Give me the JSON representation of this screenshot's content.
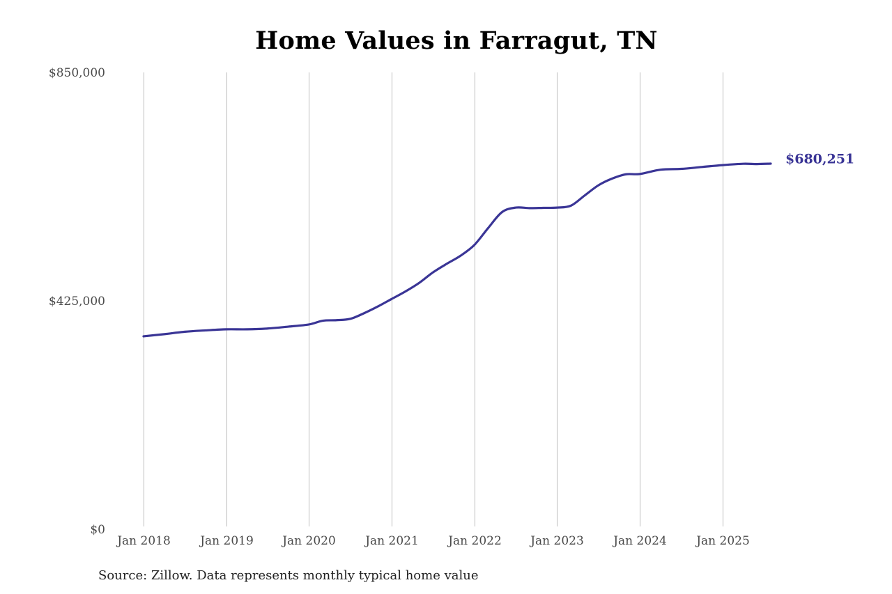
{
  "chart_data": {
    "type": "line",
    "title": "Home Values in Farragut, TN",
    "source": "Source: Zillow. Data represents monthly typical home value",
    "xlabel": "",
    "ylabel": "",
    "ylim": [
      0,
      850000
    ],
    "yticks": [
      {
        "value": 0,
        "label": "$0"
      },
      {
        "value": 425000,
        "label": "$425,000"
      },
      {
        "value": 850000,
        "label": "$850,000"
      }
    ],
    "xticks": [
      {
        "date": "2018-01",
        "label": "Jan 2018"
      },
      {
        "date": "2019-01",
        "label": "Jan 2019"
      },
      {
        "date": "2020-01",
        "label": "Jan 2020"
      },
      {
        "date": "2021-01",
        "label": "Jan 2021"
      },
      {
        "date": "2022-01",
        "label": "Jan 2022"
      },
      {
        "date": "2023-01",
        "label": "Jan 2023"
      },
      {
        "date": "2024-01",
        "label": "Jan 2024"
      },
      {
        "date": "2025-01",
        "label": "Jan 2025"
      }
    ],
    "grid": {
      "vertical": true,
      "horizontal": false
    },
    "line_color": "#3a3596",
    "end_label": "$680,251",
    "series": [
      {
        "points": [
          {
            "x": "2018-01",
            "y": 359000
          },
          {
            "x": "2018-04",
            "y": 363000
          },
          {
            "x": "2018-07",
            "y": 367500
          },
          {
            "x": "2018-10",
            "y": 370000
          },
          {
            "x": "2019-01",
            "y": 372000
          },
          {
            "x": "2019-04",
            "y": 372000
          },
          {
            "x": "2019-07",
            "y": 373500
          },
          {
            "x": "2019-10",
            "y": 377000
          },
          {
            "x": "2020-01",
            "y": 381000
          },
          {
            "x": "2020-03",
            "y": 388000
          },
          {
            "x": "2020-05",
            "y": 389000
          },
          {
            "x": "2020-07",
            "y": 391500
          },
          {
            "x": "2020-09",
            "y": 402000
          },
          {
            "x": "2020-11",
            "y": 414500
          },
          {
            "x": "2021-01",
            "y": 428500
          },
          {
            "x": "2021-03",
            "y": 442500
          },
          {
            "x": "2021-05",
            "y": 458500
          },
          {
            "x": "2021-07",
            "y": 478000
          },
          {
            "x": "2021-09",
            "y": 494000
          },
          {
            "x": "2021-11",
            "y": 509000
          },
          {
            "x": "2022-01",
            "y": 529000
          },
          {
            "x": "2022-03",
            "y": 560500
          },
          {
            "x": "2022-05",
            "y": 590000
          },
          {
            "x": "2022-07",
            "y": 598500
          },
          {
            "x": "2022-09",
            "y": 597500
          },
          {
            "x": "2022-11",
            "y": 598000
          },
          {
            "x": "2023-01",
            "y": 598500
          },
          {
            "x": "2023-03",
            "y": 602000
          },
          {
            "x": "2023-05",
            "y": 621000
          },
          {
            "x": "2023-07",
            "y": 640000
          },
          {
            "x": "2023-09",
            "y": 652500
          },
          {
            "x": "2023-11",
            "y": 660500
          },
          {
            "x": "2024-01",
            "y": 661000
          },
          {
            "x": "2024-04",
            "y": 669000
          },
          {
            "x": "2024-07",
            "y": 670500
          },
          {
            "x": "2024-10",
            "y": 674000
          },
          {
            "x": "2025-01",
            "y": 677500
          },
          {
            "x": "2025-04",
            "y": 680000
          },
          {
            "x": "2025-06",
            "y": 679500
          },
          {
            "x": "2025-08",
            "y": 680251
          }
        ]
      }
    ]
  }
}
